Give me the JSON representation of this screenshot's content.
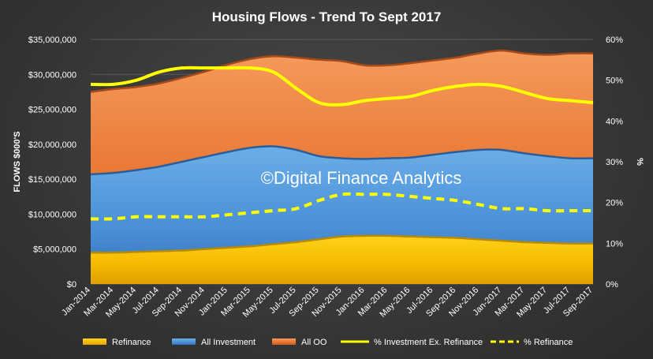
{
  "chart_data": {
    "type": "area",
    "title": "Housing Flows - Trend To Sept 2017",
    "ylabel": "FLOWS $000'S",
    "y2label": "%",
    "watermark": "©Digital Finance Analytics",
    "ylim": [
      0,
      35000000
    ],
    "y2lim": [
      0,
      60
    ],
    "yticks": [
      "$0",
      "$5,000,000",
      "$10,000,000",
      "$15,000,000",
      "$20,000,000",
      "$25,000,000",
      "$30,000,000",
      "$35,000,000"
    ],
    "y2ticks": [
      "0%",
      "10%",
      "20%",
      "30%",
      "40%",
      "50%",
      "60%"
    ],
    "categories": [
      "Jan-2014",
      "Mar-2014",
      "May-2014",
      "Jul-2014",
      "Sep-2014",
      "Nov-2014",
      "Jan-2015",
      "Mar-2015",
      "May-2015",
      "Jul-2015",
      "Sep-2015",
      "Nov-2015",
      "Jan-2016",
      "Mar-2016",
      "May-2016",
      "Jul-2016",
      "Sep-2016",
      "Nov-2016",
      "Jan-2017",
      "Mar-2017",
      "May-2017",
      "Jul-2017",
      "Sep-2017"
    ],
    "stacked_series": [
      {
        "name": "Refinance",
        "color": "#f2b800",
        "values": [
          4500000,
          4500000,
          4600000,
          4700000,
          4800000,
          5000000,
          5200000,
          5400000,
          5700000,
          6000000,
          6400000,
          6800000,
          6900000,
          6900000,
          6800000,
          6700000,
          6600000,
          6400000,
          6200000,
          6000000,
          5900000,
          5800000,
          5800000
        ]
      },
      {
        "name": "All Investment",
        "color": "#4a90d9",
        "values": [
          11200000,
          11400000,
          11700000,
          12100000,
          12700000,
          13200000,
          13700000,
          14100000,
          14000000,
          13200000,
          11900000,
          11200000,
          11000000,
          11100000,
          11300000,
          11800000,
          12300000,
          12800000,
          13000000,
          12700000,
          12400000,
          12200000,
          12200000
        ]
      },
      {
        "name": "All OO",
        "color": "#ec7a3a",
        "values": [
          11800000,
          12000000,
          11900000,
          11900000,
          12000000,
          12200000,
          12500000,
          12700000,
          12900000,
          13200000,
          13800000,
          13900000,
          13400000,
          13300000,
          13500000,
          13500000,
          13500000,
          13800000,
          14200000,
          14300000,
          14500000,
          15000000,
          15000000
        ]
      }
    ],
    "line_series": [
      {
        "name": "% Investment Ex. Refinance",
        "color": "#ffff00",
        "style": "solid",
        "values": [
          49,
          49,
          50,
          52,
          53,
          53,
          53,
          53,
          52,
          48,
          44.5,
          44,
          45,
          45.5,
          46,
          47.5,
          48.5,
          49,
          48.5,
          47,
          45.5,
          45,
          44.5
        ]
      },
      {
        "name": "% Refinance",
        "color": "#ffff00",
        "style": "dashed",
        "values": [
          16,
          16,
          16.5,
          16.5,
          16.5,
          16.5,
          17,
          17.5,
          18,
          18.5,
          20.5,
          22,
          22,
          22,
          21.5,
          21,
          20.5,
          19.5,
          18.5,
          18.5,
          18,
          18,
          18
        ]
      }
    ],
    "legend": [
      "Refinance",
      "All Investment",
      "All OO",
      "% Investment Ex. Refinance",
      "% Refinance"
    ],
    "legend_position": "bottom"
  }
}
